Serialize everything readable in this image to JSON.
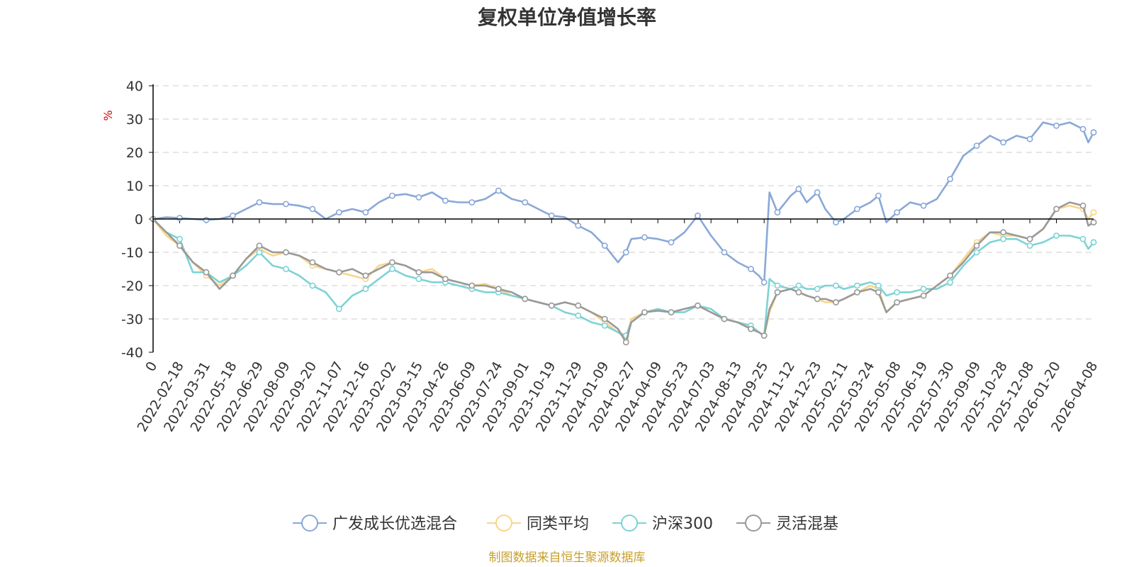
{
  "chart_data": {
    "type": "line",
    "title": "复权单位净值增长率",
    "ylabel": "%",
    "ylim": [
      -40,
      40
    ],
    "yticks": [
      40,
      30,
      20,
      10,
      0,
      -10,
      -20,
      -30,
      -40
    ],
    "grid": true,
    "legend_position": "bottom",
    "x_labels": [
      "0",
      "2022-02-18",
      "2022-03-31",
      "2022-05-18",
      "2022-06-29",
      "2022-08-09",
      "2022-09-20",
      "2022-11-07",
      "2022-12-16",
      "2023-02-02",
      "2023-03-15",
      "2023-04-26",
      "2023-06-09",
      "2023-07-24",
      "2023-09-01",
      "2023-10-19",
      "2023-11-29",
      "2024-01-09",
      "2024-02-27",
      "2024-04-09",
      "2024-05-23",
      "2024-07-03",
      "2024-08-13",
      "2024-09-25",
      "2024-11-12",
      "2024-12-23",
      "2025-02-11",
      "2025-03-24",
      "2025-05-08",
      "2025-06-19",
      "2025-07-30",
      "2025-09-09",
      "2025-10-28",
      "2025-12-08",
      "2026-01-20",
      "2026-04-08"
    ],
    "x_label_index": [
      0,
      1,
      2,
      3,
      4,
      5,
      6,
      7,
      8,
      9,
      10,
      11,
      12,
      13,
      14,
      15,
      16,
      17,
      18,
      19,
      20,
      21,
      22,
      23,
      24,
      25,
      26,
      27,
      28,
      29,
      30,
      31,
      32,
      33,
      34,
      35.4
    ],
    "x_range": [
      0,
      35.4
    ],
    "series": [
      {
        "name": "广发成长优选混合",
        "color": "#89a8d8",
        "x": [
          0,
          0.5,
          1,
          1.5,
          2,
          2.5,
          3,
          3.5,
          4,
          4.5,
          5,
          5.5,
          6,
          6.5,
          7,
          7.5,
          8,
          8.5,
          9,
          9.5,
          10,
          10.5,
          11,
          11.5,
          12,
          12.5,
          13,
          13.5,
          14,
          14.5,
          15,
          15.5,
          16,
          16.5,
          17,
          17.5,
          17.8,
          18,
          18.5,
          19,
          19.5,
          20,
          20.5,
          21,
          21.5,
          22,
          22.5,
          22.8,
          23,
          23.2,
          23.5,
          24,
          24.3,
          24.6,
          25,
          25.3,
          25.7,
          26,
          26.5,
          27,
          27.3,
          27.6,
          28,
          28.5,
          29,
          29.5,
          30,
          30.5,
          31,
          31.5,
          32,
          32.5,
          33,
          33.5,
          34,
          34.5,
          35,
          35.2,
          35.4
        ],
        "values": [
          0,
          0.5,
          0.3,
          0,
          -0.3,
          0,
          1,
          3,
          5,
          4.5,
          4.5,
          4,
          3,
          0,
          2,
          3,
          2,
          5,
          7,
          7.5,
          6.5,
          8,
          5.5,
          5,
          5,
          6,
          8.5,
          6,
          5,
          3,
          1,
          0.5,
          -2,
          -4,
          -8,
          -13,
          -10,
          -6,
          -5.5,
          -6,
          -7,
          -4,
          1,
          -5,
          -10,
          -13,
          -15,
          -17,
          -19,
          8,
          2,
          7,
          9,
          5,
          8,
          3,
          -1,
          0,
          3,
          5,
          7,
          -1,
          2,
          5,
          4,
          6,
          12,
          19,
          22,
          25,
          23,
          25,
          24,
          29,
          28,
          29,
          27,
          23,
          26
        ]
      },
      {
        "name": "同类平均",
        "color": "#fad58a",
        "x": [
          0,
          0.5,
          1,
          1.5,
          2,
          2.5,
          3,
          3.5,
          4,
          4.5,
          5,
          5.5,
          6,
          6.5,
          7,
          7.5,
          8,
          8.5,
          9,
          9.5,
          10,
          10.5,
          11,
          11.5,
          12,
          12.5,
          13,
          13.5,
          14,
          14.5,
          15,
          15.5,
          16,
          16.5,
          17,
          17.5,
          17.8,
          18,
          18.5,
          19,
          19.5,
          20,
          20.5,
          21,
          21.5,
          22,
          22.5,
          22.8,
          23,
          23.2,
          23.5,
          24,
          24.3,
          24.6,
          25,
          25.3,
          25.7,
          26,
          26.5,
          27,
          27.3,
          27.6,
          28,
          28.5,
          29,
          29.5,
          30,
          30.5,
          31,
          31.5,
          32,
          32.5,
          33,
          33.5,
          34,
          34.5,
          35,
          35.2,
          35.4
        ],
        "values": [
          0,
          -5,
          -8,
          -13,
          -17,
          -20,
          -17,
          -12,
          -9,
          -11,
          -10,
          -11,
          -14,
          -15,
          -16,
          -17,
          -18,
          -14,
          -13,
          -14,
          -16,
          -15,
          -18,
          -19,
          -20,
          -19.5,
          -21,
          -23,
          -24,
          -25,
          -26,
          -25,
          -26,
          -28,
          -31,
          -34,
          -36,
          -30,
          -28,
          -27.5,
          -28,
          -27,
          -26,
          -28,
          -30,
          -31,
          -33,
          -34,
          -35,
          -28,
          -22,
          -21,
          -22,
          -23,
          -24,
          -25,
          -25,
          -24,
          -22,
          -20,
          -21,
          -28,
          -25,
          -24,
          -23,
          -20,
          -17,
          -12,
          -7,
          -4,
          -5,
          -5,
          -6,
          -3,
          3,
          4,
          3,
          0,
          2
        ]
      },
      {
        "name": "沪深300",
        "color": "#7dd3d5",
        "x": [
          0,
          0.5,
          1,
          1.5,
          2,
          2.5,
          3,
          3.5,
          4,
          4.5,
          5,
          5.5,
          6,
          6.5,
          7,
          7.5,
          8,
          8.5,
          9,
          9.5,
          10,
          10.5,
          11,
          11.5,
          12,
          12.5,
          13,
          13.5,
          14,
          14.5,
          15,
          15.5,
          16,
          16.5,
          17,
          17.5,
          17.8,
          18,
          18.5,
          19,
          19.5,
          20,
          20.5,
          21,
          21.5,
          22,
          22.5,
          22.8,
          23,
          23.2,
          23.5,
          24,
          24.3,
          24.6,
          25,
          25.3,
          25.7,
          26,
          26.5,
          27,
          27.3,
          27.6,
          28,
          28.5,
          29,
          29.5,
          30,
          30.5,
          31,
          31.5,
          32,
          32.5,
          33,
          33.5,
          34,
          34.5,
          35,
          35.2,
          35.4
        ],
        "values": [
          0,
          -4,
          -6,
          -16,
          -16,
          -19,
          -17,
          -14,
          -10,
          -14,
          -15,
          -17,
          -20,
          -22,
          -27,
          -23,
          -21,
          -18,
          -15,
          -17,
          -18,
          -19,
          -19,
          -20,
          -21,
          -22,
          -22,
          -23,
          -24,
          -25,
          -26,
          -28,
          -29,
          -31,
          -32,
          -34,
          -35,
          -31,
          -28,
          -27,
          -28,
          -28,
          -26,
          -27,
          -30,
          -31,
          -32,
          -34,
          -35,
          -18,
          -20,
          -21,
          -20,
          -21,
          -21,
          -20,
          -20,
          -21,
          -20,
          -19,
          -20,
          -23,
          -22,
          -22,
          -21,
          -21,
          -19,
          -14,
          -10,
          -7,
          -6,
          -6,
          -8,
          -7,
          -5,
          -5,
          -6,
          -9,
          -7
        ]
      },
      {
        "name": "灵活混基",
        "color": "#999999",
        "x": [
          0,
          0.5,
          1,
          1.5,
          2,
          2.5,
          3,
          3.5,
          4,
          4.5,
          5,
          5.5,
          6,
          6.5,
          7,
          7.5,
          8,
          8.5,
          9,
          9.5,
          10,
          10.5,
          11,
          11.5,
          12,
          12.5,
          13,
          13.5,
          14,
          14.5,
          15,
          15.5,
          16,
          16.5,
          17,
          17.5,
          17.8,
          18,
          18.5,
          19,
          19.5,
          20,
          20.5,
          21,
          21.5,
          22,
          22.5,
          22.8,
          23,
          23.2,
          23.5,
          24,
          24.3,
          24.6,
          25,
          25.3,
          25.7,
          26,
          26.5,
          27,
          27.3,
          27.6,
          28,
          28.5,
          29,
          29.5,
          30,
          30.5,
          31,
          31.5,
          32,
          32.5,
          33,
          33.5,
          34,
          34.5,
          35,
          35.2,
          35.4
        ],
        "values": [
          0,
          -4,
          -8,
          -13,
          -16,
          -21,
          -17,
          -12,
          -8,
          -10,
          -10,
          -11,
          -13,
          -15,
          -16,
          -15,
          -17,
          -15,
          -13,
          -14,
          -16,
          -16,
          -18,
          -19,
          -20,
          -20,
          -21,
          -22,
          -24,
          -25,
          -26,
          -25,
          -26,
          -28,
          -30,
          -33,
          -37,
          -31,
          -28,
          -27.5,
          -28,
          -27,
          -26,
          -28,
          -30,
          -31,
          -33,
          -34,
          -35,
          -27,
          -22,
          -21,
          -22,
          -23,
          -24,
          -24,
          -25,
          -24,
          -22,
          -21,
          -22,
          -28,
          -25,
          -24,
          -23,
          -20,
          -17,
          -13,
          -8,
          -4,
          -4,
          -5,
          -6,
          -3,
          3,
          5,
          4,
          -2,
          -1
        ]
      }
    ]
  },
  "legend": [
    "广发成长优选混合",
    "同类平均",
    "沪深300",
    "灵活混基"
  ],
  "footer": "制图数据来自恒生聚源数据库"
}
